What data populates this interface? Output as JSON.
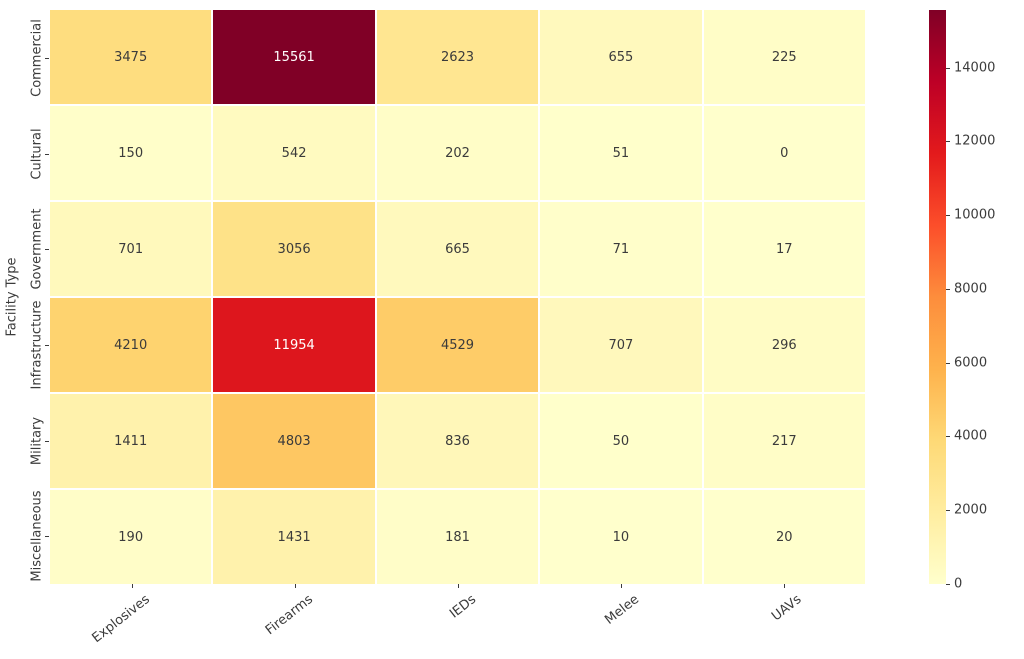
{
  "chart_data": {
    "type": "heatmap",
    "title": "",
    "xlabel": "",
    "ylabel": "Facility Type",
    "x_categories": [
      "Explosives",
      "Firearms",
      "IEDs",
      "Melee",
      "UAVs"
    ],
    "y_categories": [
      "Commercial",
      "Cultural",
      "Government",
      "Infrastructure",
      "Military",
      "Miscellaneous"
    ],
    "values": [
      [
        3475,
        15561,
        2623,
        655,
        225
      ],
      [
        150,
        542,
        202,
        51,
        0
      ],
      [
        701,
        3056,
        665,
        71,
        17
      ],
      [
        4210,
        11954,
        4529,
        707,
        296
      ],
      [
        1411,
        4803,
        836,
        50,
        217
      ],
      [
        190,
        1431,
        181,
        10,
        20
      ]
    ],
    "vmin": 0,
    "vmax": 15561,
    "annotations": "values shown in each cell",
    "colormap": {
      "name": "YlOrRd",
      "stops": [
        "#ffffcc",
        "#ffeda0",
        "#fed976",
        "#feb24c",
        "#fd8d3c",
        "#fc4e2a",
        "#e31a1c",
        "#bd0026",
        "#800026"
      ]
    },
    "colorbar_ticks": [
      {
        "value": 0,
        "label": "0"
      },
      {
        "value": 2000,
        "label": "2000"
      },
      {
        "value": 4000,
        "label": "4000"
      },
      {
        "value": 6000,
        "label": "6000"
      },
      {
        "value": 8000,
        "label": "8000"
      },
      {
        "value": 10000,
        "label": "10000"
      },
      {
        "value": 12000,
        "label": "12000"
      },
      {
        "value": 14000,
        "label": "14000"
      }
    ],
    "annotation_colors": {
      "dark": "#3b3b3b",
      "light": "#ffffff"
    },
    "grid_line_color": "#ffffff",
    "background": "#ffffff",
    "grid": "off",
    "legend_position": "right-colorbar",
    "xtick_rotation_deg": 38,
    "ytick_rotation_deg": 90
  }
}
